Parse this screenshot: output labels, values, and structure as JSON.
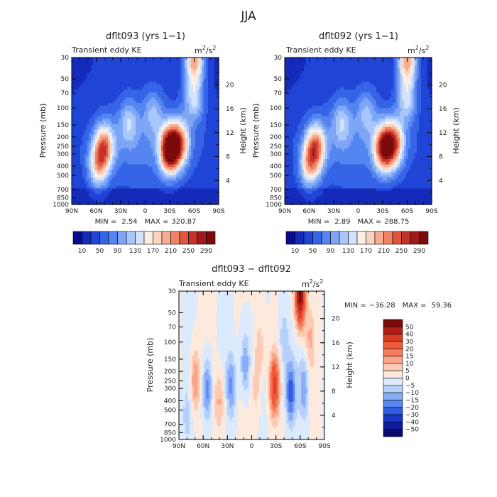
{
  "figure_title": "JJA",
  "chart_data": [
    {
      "type": "heatmap",
      "title": "dflt093 (yrs 1−1)",
      "subtitle": "Transient eddy KE",
      "units_base": "m",
      "units_sup1": "2",
      "units_mid": "/s",
      "units_sup2": "2",
      "xlabel": "",
      "ylabel": "Pressure (mb)",
      "y2label": "Height (km)",
      "x_ticks": [
        "90N",
        "60N",
        "30N",
        "0",
        "30S",
        "60S",
        "90S"
      ],
      "y_ticks": [
        "30",
        "50",
        "70",
        "100",
        "150",
        "200",
        "250",
        "300",
        "400",
        "500",
        "700",
        "850",
        "1000"
      ],
      "y2_ticks": [
        "20",
        "16",
        "12",
        "8",
        "4"
      ],
      "min_label": "MIN =",
      "min_value": "2.54",
      "max_label": "MAX =",
      "max_value": "320.87",
      "levels": [
        "10",
        "50",
        "90",
        "130",
        "170",
        "210",
        "250",
        "290"
      ],
      "colorbar_orientation": "horizontal",
      "colors": [
        "#0a0a8c",
        "#1a2fc8",
        "#2f57e0",
        "#5a85f0",
        "#8db4fb",
        "#bcd6fd",
        "#e2eefe",
        "#fde8d8",
        "#f9c4a8",
        "#f3977a",
        "#e6634e",
        "#cc3a2c",
        "#a91f1b",
        "#7d0a0a"
      ],
      "blobs": [
        {
          "lat": -30,
          "p": 270,
          "v": 270
        },
        {
          "lat": -42,
          "p": 230,
          "v": 150
        },
        {
          "lat": 50,
          "p": 250,
          "v": 160
        },
        {
          "lat": 58,
          "p": 400,
          "v": 120
        },
        {
          "lat": -60,
          "p": 32,
          "v": 170
        },
        {
          "lat": -60,
          "p": 80,
          "v": 100
        },
        {
          "lat": 20,
          "p": 140,
          "v": 70
        },
        {
          "lat": -10,
          "p": 110,
          "v": 60
        }
      ]
    },
    {
      "type": "heatmap",
      "title": "dflt092 (yrs 1−1)",
      "subtitle": "Transient eddy KE",
      "units_base": "m",
      "units_sup1": "2",
      "units_mid": "/s",
      "units_sup2": "2",
      "xlabel": "",
      "ylabel": "Pressure (mb)",
      "y2label": "Height (km)",
      "x_ticks": [
        "90N",
        "60N",
        "30N",
        "0",
        "30S",
        "60S",
        "90S"
      ],
      "y_ticks": [
        "30",
        "50",
        "70",
        "100",
        "150",
        "200",
        "250",
        "300",
        "400",
        "500",
        "700",
        "850",
        "1000"
      ],
      "y2_ticks": [
        "20",
        "16",
        "12",
        "8",
        "4"
      ],
      "min_label": "MIN =",
      "min_value": "2.89",
      "max_label": "MAX =",
      "max_value": "288.75",
      "levels": [
        "10",
        "50",
        "90",
        "130",
        "170",
        "210",
        "250",
        "290"
      ],
      "colorbar_orientation": "horizontal",
      "colors": [
        "#0a0a8c",
        "#1a2fc8",
        "#2f57e0",
        "#5a85f0",
        "#8db4fb",
        "#bcd6fd",
        "#e2eefe",
        "#fde8d8",
        "#f9c4a8",
        "#f3977a",
        "#e6634e",
        "#cc3a2c",
        "#a91f1b",
        "#7d0a0a"
      ],
      "blobs": [
        {
          "lat": -32,
          "p": 260,
          "v": 230
        },
        {
          "lat": -45,
          "p": 230,
          "v": 150
        },
        {
          "lat": 52,
          "p": 250,
          "v": 165
        },
        {
          "lat": 60,
          "p": 400,
          "v": 120
        },
        {
          "lat": -60,
          "p": 32,
          "v": 170
        },
        {
          "lat": -60,
          "p": 80,
          "v": 100
        },
        {
          "lat": 20,
          "p": 140,
          "v": 70
        },
        {
          "lat": -10,
          "p": 110,
          "v": 60
        }
      ]
    },
    {
      "type": "heatmap",
      "title": "dflt093 − dflt092",
      "subtitle": "Transient eddy KE",
      "units_base": "m",
      "units_sup1": "2",
      "units_mid": "/s",
      "units_sup2": "2",
      "xlabel": "",
      "ylabel": "Pressure (mb)",
      "y2label": "Height (km)",
      "x_ticks": [
        "90N",
        "60N",
        "30N",
        "0",
        "30S",
        "60S",
        "90S"
      ],
      "y_ticks": [
        "30",
        "50",
        "70",
        "100",
        "150",
        "200",
        "250",
        "300",
        "400",
        "500",
        "700",
        "850",
        "1000"
      ],
      "y2_ticks": [
        "20",
        "16",
        "12",
        "8",
        "4"
      ],
      "min_label": "MIN =",
      "min_value": "−36.28",
      "max_label": "MAX =",
      "max_value": "59.36",
      "levels": [
        "50",
        "40",
        "30",
        "20",
        "15",
        "10",
        "5",
        "0",
        "−5",
        "−10",
        "−15",
        "−20",
        "−30",
        "−40",
        "−50"
      ],
      "colorbar_orientation": "vertical",
      "colors": [
        "#7d0a0a",
        "#b01e18",
        "#d83a25",
        "#ee5a3a",
        "#f77d5e",
        "#fba589",
        "#fdcbb4",
        "#fdeadd",
        "#dbeafc",
        "#b7d0fb",
        "#88adf6",
        "#5a85ee",
        "#2f5ce2",
        "#1a36c6",
        "#0c1c9e",
        "#070a6e"
      ],
      "blobs": [
        {
          "lat": -28,
          "p": 280,
          "v": 30
        },
        {
          "lat": -60,
          "p": 32,
          "v": 55
        },
        {
          "lat": -72,
          "p": 90,
          "v": 10
        },
        {
          "lat": 70,
          "p": 250,
          "v": 17
        },
        {
          "lat": 40,
          "p": 400,
          "v": 12
        },
        {
          "lat": -10,
          "p": 120,
          "v": 10
        },
        {
          "lat": -5,
          "p": 300,
          "v": 8
        },
        {
          "lat": -48,
          "p": 330,
          "v": -22
        },
        {
          "lat": 55,
          "p": 300,
          "v": -20
        },
        {
          "lat": 25,
          "p": 280,
          "v": -15
        },
        {
          "lat": 8,
          "p": 170,
          "v": -16
        },
        {
          "lat": -40,
          "p": 100,
          "v": -10
        },
        {
          "lat": -65,
          "p": 300,
          "v": -14
        },
        {
          "lat": 80,
          "p": 600,
          "v": -6
        }
      ]
    }
  ]
}
